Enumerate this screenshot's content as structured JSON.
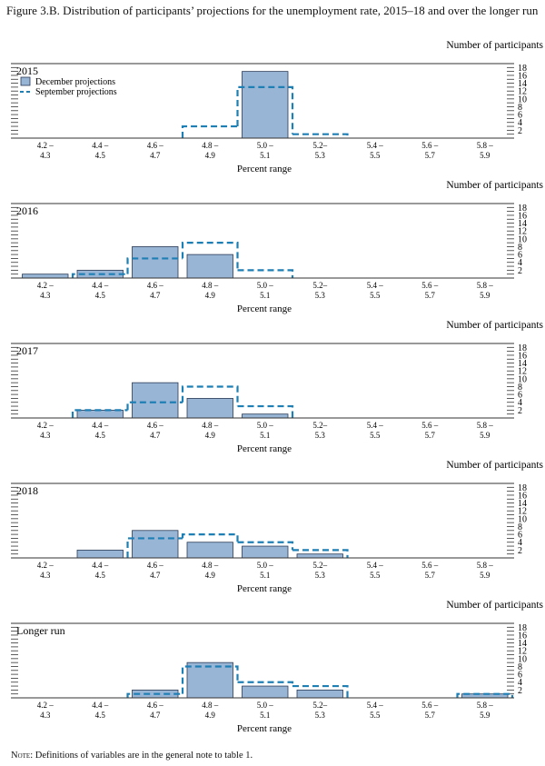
{
  "title": "Figure 3.B. Distribution of participants’ projections for the unemployment rate, 2015–18 and over the longer run",
  "note": {
    "lead": "Note",
    "text": ": Definitions of variables are in the general note to table 1."
  },
  "colors": {
    "bar_fill": "#98b5d6",
    "bar_stroke": "#2a3a55",
    "dash": "#1e7fb5",
    "rule": "#333333"
  },
  "chart_data": [
    {
      "type": "bar",
      "panel": "2015",
      "ylabel": "Number of participants",
      "xlabel": "Percent range",
      "categories": [
        "4.2 –\n4.3",
        "4.4 –\n4.5",
        "4.6 –\n4.7",
        "4.8 –\n4.9",
        "5.0 –\n5.1",
        "5.2–\n5.3",
        "5.4 –\n5.5",
        "5.6 –\n5.7",
        "5.8 –\n5.9"
      ],
      "y_ticks": [
        2,
        4,
        6,
        8,
        10,
        12,
        14,
        16,
        18
      ],
      "ylim": [
        0,
        19
      ],
      "legend": {
        "placement": "top-left",
        "entries": [
          "December projections",
          "September projections"
        ]
      },
      "series": [
        {
          "name": "December projections",
          "style": "bar",
          "values": [
            0,
            0,
            0,
            0,
            17,
            0,
            0,
            0,
            0
          ]
        },
        {
          "name": "September projections",
          "style": "dashed-step",
          "values": [
            0,
            0,
            0,
            3,
            13,
            1,
            0,
            0,
            0
          ]
        }
      ]
    },
    {
      "type": "bar",
      "panel": "2016",
      "ylabel": "Number of participants",
      "xlabel": "Percent range",
      "categories": [
        "4.2 –\n4.3",
        "4.4 –\n4.5",
        "4.6 –\n4.7",
        "4.8 –\n4.9",
        "5.0 –\n5.1",
        "5.2–\n5.3",
        "5.4 –\n5.5",
        "5.6 –\n5.7",
        "5.8 –\n5.9"
      ],
      "y_ticks": [
        2,
        4,
        6,
        8,
        10,
        12,
        14,
        16,
        18
      ],
      "ylim": [
        0,
        19
      ],
      "series": [
        {
          "name": "December projections",
          "style": "bar",
          "values": [
            1,
            2,
            8,
            6,
            0,
            0,
            0,
            0,
            0
          ]
        },
        {
          "name": "September projections",
          "style": "dashed-step",
          "values": [
            0,
            1,
            5,
            9,
            2,
            0,
            0,
            0,
            0
          ]
        }
      ]
    },
    {
      "type": "bar",
      "panel": "2017",
      "ylabel": "Number of participants",
      "xlabel": "Percent range",
      "categories": [
        "4.2 –\n4.3",
        "4.4 –\n4.5",
        "4.6 –\n4.7",
        "4.8 –\n4.9",
        "5.0 –\n5.1",
        "5.2–\n5.3",
        "5.4 –\n5.5",
        "5.6 –\n5.7",
        "5.8 –\n5.9"
      ],
      "y_ticks": [
        2,
        4,
        6,
        8,
        10,
        12,
        14,
        16,
        18
      ],
      "ylim": [
        0,
        19
      ],
      "series": [
        {
          "name": "December projections",
          "style": "bar",
          "values": [
            0,
            2,
            9,
            5,
            1,
            0,
            0,
            0,
            0
          ]
        },
        {
          "name": "September projections",
          "style": "dashed-step",
          "values": [
            0,
            2,
            4,
            8,
            3,
            0,
            0,
            0,
            0
          ]
        }
      ]
    },
    {
      "type": "bar",
      "panel": "2018",
      "ylabel": "Number of participants",
      "xlabel": "Percent range",
      "categories": [
        "4.2 –\n4.3",
        "4.4 –\n4.5",
        "4.6 –\n4.7",
        "4.8 –\n4.9",
        "5.0 –\n5.1",
        "5.2–\n5.3",
        "5.4 –\n5.5",
        "5.6 –\n5.7",
        "5.8 –\n5.9"
      ],
      "y_ticks": [
        2,
        4,
        6,
        8,
        10,
        12,
        14,
        16,
        18
      ],
      "ylim": [
        0,
        19
      ],
      "series": [
        {
          "name": "December projections",
          "style": "bar",
          "values": [
            0,
            2,
            7,
            4,
            3,
            1,
            0,
            0,
            0
          ]
        },
        {
          "name": "September projections",
          "style": "dashed-step",
          "values": [
            0,
            0,
            5,
            6,
            4,
            2,
            0,
            0,
            0
          ]
        }
      ]
    },
    {
      "type": "bar",
      "panel": "Longer run",
      "ylabel": "Number of participants",
      "xlabel": "Percent range",
      "categories": [
        "4.2 –\n4.3",
        "4.4 –\n4.5",
        "4.6 –\n4.7",
        "4.8 –\n4.9",
        "5.0 –\n5.1",
        "5.2–\n5.3",
        "5.4 –\n5.5",
        "5.6 –\n5.7",
        "5.8 –\n5.9"
      ],
      "y_ticks": [
        2,
        4,
        6,
        8,
        10,
        12,
        14,
        16,
        18
      ],
      "ylim": [
        0,
        19
      ],
      "series": [
        {
          "name": "December projections",
          "style": "bar",
          "values": [
            0,
            0,
            2,
            9,
            3,
            2,
            0,
            0,
            1
          ]
        },
        {
          "name": "September projections",
          "style": "dashed-step",
          "values": [
            0,
            0,
            1,
            8,
            4,
            3,
            0,
            0,
            1
          ]
        }
      ]
    }
  ]
}
